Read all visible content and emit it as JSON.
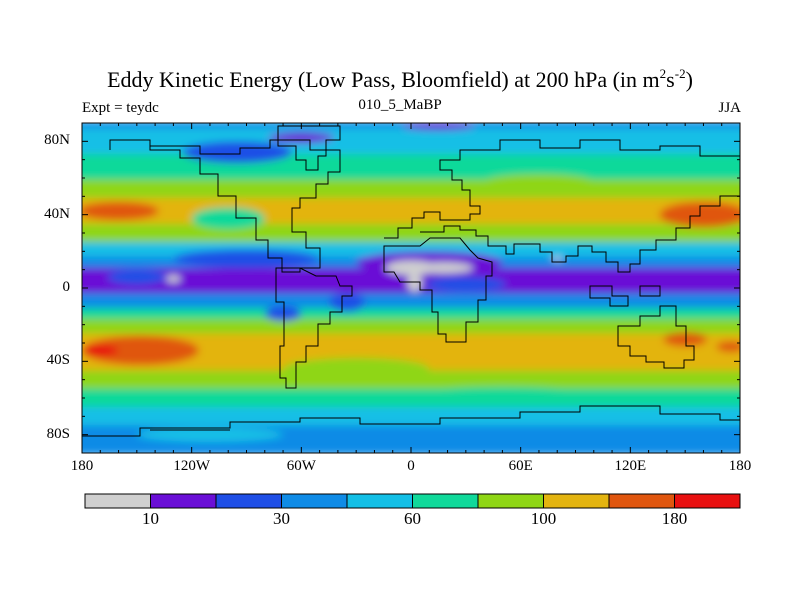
{
  "title": {
    "text": "Eddy Kinetic Energy (Low Pass, Bloomfield) at 200 hPa (in m",
    "unit_sup1": "2",
    "unit_mid": "s",
    "unit_sup2": "-2",
    "unit_close": ")"
  },
  "left_label": "Expt = teydc",
  "center_label": "010_5_MaBP",
  "right_label": "JJA",
  "chart_data": {
    "type": "filled-contour map",
    "variable": "Eddy Kinetic Energy (Low Pass, Bloomfield)",
    "level": "200 hPa",
    "units": "m2 s-2",
    "season": "JJA",
    "lon_range": [
      -180,
      180
    ],
    "lat_range": [
      -90,
      90
    ],
    "x_ticks": [
      {
        "lon": -180,
        "label": "180"
      },
      {
        "lon": -120,
        "label": "120W"
      },
      {
        "lon": -60,
        "label": "60W"
      },
      {
        "lon": 0,
        "label": "0"
      },
      {
        "lon": 60,
        "label": "60E"
      },
      {
        "lon": 120,
        "label": "120E"
      },
      {
        "lon": 180,
        "label": "180"
      }
    ],
    "y_ticks": [
      {
        "lat": 80,
        "label": "80N"
      },
      {
        "lat": 40,
        "label": "40N"
      },
      {
        "lat": 0,
        "label": "0"
      },
      {
        "lat": -40,
        "label": "40S"
      },
      {
        "lat": -80,
        "label": "80S"
      }
    ],
    "colorbar": {
      "colors": [
        "#cfcfcf",
        "#6a0fd6",
        "#1f4fe6",
        "#0f8be6",
        "#13bfe6",
        "#10d99a",
        "#8fd615",
        "#e3b410",
        "#e0560e",
        "#e81010"
      ],
      "labels": [
        {
          "index": 1,
          "text": "10"
        },
        {
          "index": 3,
          "text": "30"
        },
        {
          "index": 5,
          "text": "60"
        },
        {
          "index": 7,
          "text": "100"
        },
        {
          "index": 9,
          "text": "180"
        }
      ]
    },
    "zonal_bands": [
      {
        "lat_top": 90,
        "lat_bottom": 86,
        "level": 3
      },
      {
        "lat_top": 86,
        "lat_bottom": 72,
        "level": 4
      },
      {
        "lat_top": 72,
        "lat_bottom": 58,
        "level": 5
      },
      {
        "lat_top": 58,
        "lat_bottom": 48,
        "level": 6
      },
      {
        "lat_top": 48,
        "lat_bottom": 34,
        "level": 7
      },
      {
        "lat_top": 34,
        "lat_bottom": 24,
        "level": 6
      },
      {
        "lat_top": 24,
        "lat_bottom": 16,
        "level": 4
      },
      {
        "lat_top": 16,
        "lat_bottom": 10,
        "level": 3
      },
      {
        "lat_top": 10,
        "lat_bottom": -4,
        "level": 1
      },
      {
        "lat_top": -4,
        "lat_bottom": -12,
        "level": 3
      },
      {
        "lat_top": -12,
        "lat_bottom": -18,
        "level": 5
      },
      {
        "lat_top": -18,
        "lat_bottom": -26,
        "level": 6
      },
      {
        "lat_top": -26,
        "lat_bottom": -46,
        "level": 7
      },
      {
        "lat_top": -46,
        "lat_bottom": -56,
        "level": 6
      },
      {
        "lat_top": -56,
        "lat_bottom": -66,
        "level": 5
      },
      {
        "lat_top": -66,
        "lat_bottom": -76,
        "level": 4
      },
      {
        "lat_top": -76,
        "lat_bottom": -90,
        "level": 3
      }
    ],
    "features": [
      {
        "lon": -160,
        "lat": 42,
        "rx": 22,
        "ry": 5,
        "level": 8
      },
      {
        "lon": 160,
        "lat": 40,
        "rx": 24,
        "ry": 7,
        "level": 8
      },
      {
        "lon": -148,
        "lat": -34,
        "rx": 32,
        "ry": 8,
        "level": 8
      },
      {
        "lon": -170,
        "lat": -34,
        "rx": 10,
        "ry": 3,
        "level": 9
      },
      {
        "lon": 150,
        "lat": -28,
        "rx": 12,
        "ry": 4,
        "level": 8
      },
      {
        "lon": 175,
        "lat": -32,
        "rx": 8,
        "ry": 3,
        "level": 8
      },
      {
        "lon": -5,
        "lat": 55,
        "rx": 16,
        "ry": 4,
        "level": 6
      },
      {
        "lon": 70,
        "lat": 58,
        "rx": 30,
        "ry": 4,
        "level": 6
      },
      {
        "lon": -95,
        "lat": 74,
        "rx": 30,
        "ry": 6,
        "level": 2
      },
      {
        "lon": -60,
        "lat": 82,
        "rx": 18,
        "ry": 3,
        "level": 1
      },
      {
        "lon": 15,
        "lat": 88,
        "rx": 20,
        "ry": 2,
        "level": 1
      },
      {
        "lon": -100,
        "lat": 38,
        "rx": 20,
        "ry": 6,
        "level": 5
      },
      {
        "lon": -30,
        "lat": -44,
        "rx": 40,
        "ry": 6,
        "level": 6
      },
      {
        "lon": 50,
        "lat": -58,
        "rx": 50,
        "ry": 4,
        "level": 5
      },
      {
        "lon": -110,
        "lat": -80,
        "rx": 40,
        "ry": 4,
        "level": 4
      },
      {
        "lon": -150,
        "lat": 6,
        "rx": 16,
        "ry": 4,
        "level": 2
      },
      {
        "lon": 30,
        "lat": 2,
        "rx": 22,
        "ry": 4,
        "level": 2
      },
      {
        "lon": -70,
        "lat": -14,
        "rx": 10,
        "ry": 4,
        "level": 2
      },
      {
        "lon": -35,
        "lat": -8,
        "rx": 10,
        "ry": 5,
        "level": 2
      },
      {
        "lon": 120,
        "lat": 4,
        "rx": 45,
        "ry": 7,
        "level": 1
      },
      {
        "lon": 10,
        "lat": 14,
        "rx": 40,
        "ry": 6,
        "level": 1
      },
      {
        "lon": -90,
        "lat": 16,
        "rx": 40,
        "ry": 5,
        "level": 2
      },
      {
        "lon": 0,
        "lat": 11,
        "rx": 14,
        "ry": 4,
        "level": 0
      },
      {
        "lon": 18,
        "lat": 11,
        "rx": 16,
        "ry": 3,
        "level": 0
      },
      {
        "lon": 2,
        "lat": 3,
        "rx": 4,
        "ry": 5,
        "level": 0
      },
      {
        "lon": -130,
        "lat": 5,
        "rx": 4,
        "ry": 2,
        "level": 0
      },
      {
        "lon": 80,
        "lat": 16,
        "rx": 3,
        "ry": 1,
        "level": 0
      }
    ]
  }
}
